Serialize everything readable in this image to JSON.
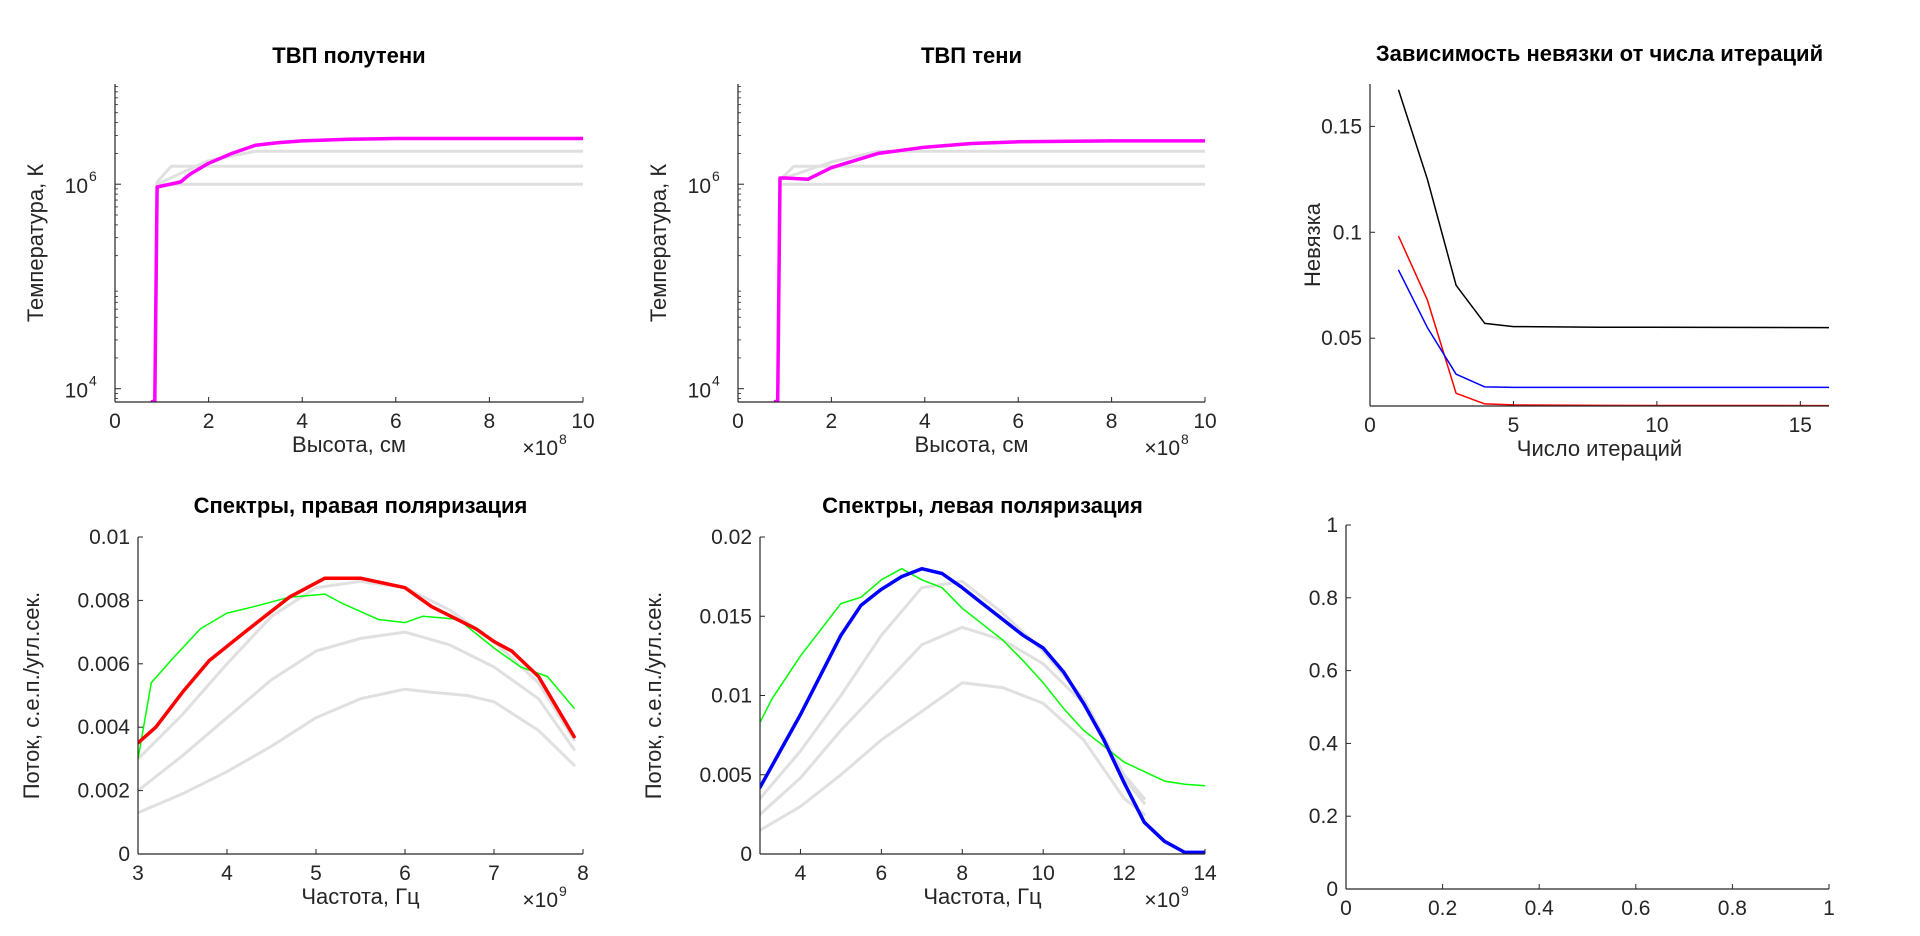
{
  "colors": {
    "magenta": "#ff00ff",
    "gray": "#e0e0e0",
    "green": "#00ff00",
    "red": "#ff0000",
    "blue": "#0000ff",
    "black": "#000000",
    "axis": "#262626"
  },
  "chart_data": [
    {
      "id": "p1",
      "type": "line",
      "title": "ТВП полутени",
      "xlabel": "Высота, см",
      "ylabel": "Температура, К",
      "x_exponent": "×10",
      "x_exponent_power": "8",
      "xlim": [
        0,
        10
      ],
      "ylim_log10": [
        3.87,
        6.98
      ],
      "y_scale": "log",
      "x_ticks": [
        0,
        2,
        4,
        6,
        8,
        10
      ],
      "x_tick_labels": [
        "0",
        "2",
        "4",
        "6",
        "8",
        "10"
      ],
      "y_ticks_log10": [
        4,
        6
      ],
      "y_tick_base": "10",
      "y_tick_powers": [
        "4",
        "6"
      ],
      "series": [
        {
          "color": "gray",
          "width": 3,
          "logy": true,
          "x": [
            0.8,
            0.85,
            0.9,
            1.0,
            10
          ],
          "y": [
            7500,
            7500,
            1000000,
            1000000,
            1000000
          ]
        },
        {
          "color": "gray",
          "width": 3,
          "logy": true,
          "x": [
            0.8,
            0.85,
            0.9,
            1.2,
            10
          ],
          "y": [
            7500,
            7500,
            1050000,
            1500000,
            1500000
          ]
        },
        {
          "color": "gray",
          "width": 3,
          "logy": true,
          "x": [
            0.8,
            0.85,
            0.9,
            1.0,
            2.0,
            3.0,
            10
          ],
          "y": [
            7500,
            7500,
            1000000,
            1050000,
            1700000,
            2100000,
            2100000
          ]
        },
        {
          "color": "magenta",
          "width": 3.5,
          "logy": true,
          "x": [
            0.8,
            0.85,
            0.9,
            0.95,
            1.0,
            1.4,
            1.6,
            2.0,
            2.5,
            3.0,
            3.5,
            4.0,
            5.0,
            6.0,
            8.0,
            10.0
          ],
          "y": [
            7500,
            7500,
            940000,
            950000,
            960000,
            1050000,
            1250000,
            1600000,
            2000000,
            2400000,
            2550000,
            2650000,
            2750000,
            2800000,
            2800000,
            2800000
          ]
        }
      ]
    },
    {
      "id": "p2",
      "type": "line",
      "title": "ТВП тени",
      "xlabel": "Высота, см",
      "ylabel": "Температура, К",
      "x_exponent": "×10",
      "x_exponent_power": "8",
      "xlim": [
        0,
        10
      ],
      "ylim_log10": [
        3.87,
        6.98
      ],
      "y_scale": "log",
      "x_ticks": [
        0,
        2,
        4,
        6,
        8,
        10
      ],
      "x_tick_labels": [
        "0",
        "2",
        "4",
        "6",
        "8",
        "10"
      ],
      "y_ticks_log10": [
        4,
        6
      ],
      "y_tick_base": "10",
      "y_tick_powers": [
        "4",
        "6"
      ],
      "series": [
        {
          "color": "gray",
          "width": 3,
          "logy": true,
          "x": [
            0.8,
            0.85,
            0.9,
            1.0,
            10
          ],
          "y": [
            7500,
            7500,
            1000000,
            1000000,
            1000000
          ]
        },
        {
          "color": "gray",
          "width": 3,
          "logy": true,
          "x": [
            0.8,
            0.85,
            0.9,
            1.2,
            10
          ],
          "y": [
            7500,
            7500,
            1100000,
            1500000,
            1500000
          ]
        },
        {
          "color": "gray",
          "width": 3,
          "logy": true,
          "x": [
            0.8,
            0.85,
            0.9,
            1.0,
            2.0,
            3.0,
            10
          ],
          "y": [
            7500,
            7500,
            1150000,
            1150000,
            1650000,
            2100000,
            2100000
          ]
        },
        {
          "color": "magenta",
          "width": 3.5,
          "logy": true,
          "x": [
            0.8,
            0.85,
            0.9,
            0.95,
            1.0,
            1.5,
            2.0,
            3.0,
            4.0,
            5.0,
            6.0,
            8.0,
            10.0
          ],
          "y": [
            7500,
            7500,
            1150000,
            1150000,
            1150000,
            1120000,
            1450000,
            2000000,
            2300000,
            2500000,
            2600000,
            2650000,
            2650000
          ]
        }
      ]
    },
    {
      "id": "p3",
      "type": "line",
      "title": "Зависимость невязки от числа итераций",
      "xlabel": "Число итераций",
      "ylabel": "Невязка",
      "xlim": [
        0,
        16
      ],
      "ylim": [
        0.018,
        0.17
      ],
      "x_ticks": [
        0,
        5,
        10,
        15
      ],
      "x_tick_labels": [
        "0",
        "5",
        "10",
        "15"
      ],
      "y_ticks": [
        0.05,
        0.1,
        0.15
      ],
      "y_tick_labels": [
        "0.05",
        "0.1",
        "0.15"
      ],
      "series": [
        {
          "color": "black",
          "width": 1.5,
          "x": [
            1,
            2,
            3,
            4,
            5,
            8,
            16
          ],
          "y": [
            0.167,
            0.125,
            0.075,
            0.057,
            0.0555,
            0.0552,
            0.055
          ]
        },
        {
          "color": "red",
          "width": 1.5,
          "x": [
            1,
            2,
            3,
            4,
            5,
            8,
            16
          ],
          "y": [
            0.098,
            0.068,
            0.024,
            0.019,
            0.0185,
            0.0183,
            0.0182
          ]
        },
        {
          "color": "blue",
          "width": 1.5,
          "x": [
            1,
            2,
            3,
            4,
            5,
            8,
            16
          ],
          "y": [
            0.082,
            0.055,
            0.033,
            0.027,
            0.0268,
            0.0268,
            0.0268
          ]
        }
      ]
    },
    {
      "id": "p4",
      "type": "line",
      "title": "Спектры, правая поляризация",
      "xlabel": "Частота, Гц",
      "ylabel": "Поток, с.е.п./угл.сек.",
      "x_exponent": "×10",
      "x_exponent_power": "9",
      "xlim": [
        3,
        8
      ],
      "ylim": [
        0,
        0.01
      ],
      "x_ticks": [
        3,
        4,
        5,
        6,
        7,
        8
      ],
      "x_tick_labels": [
        "3",
        "4",
        "5",
        "6",
        "7",
        "8"
      ],
      "y_ticks": [
        0,
        0.002,
        0.004,
        0.006,
        0.008,
        0.01
      ],
      "y_tick_labels": [
        "0",
        "0.002",
        "0.004",
        "0.006",
        "0.008",
        "0.01"
      ],
      "series": [
        {
          "color": "gray",
          "width": 3,
          "x": [
            3.0,
            3.5,
            4.0,
            4.5,
            5.0,
            5.5,
            6.0,
            6.3,
            6.7,
            7.0,
            7.5,
            7.9
          ],
          "y": [
            0.0013,
            0.0019,
            0.0026,
            0.0034,
            0.0043,
            0.0049,
            0.0052,
            0.0051,
            0.005,
            0.0048,
            0.0039,
            0.0028
          ]
        },
        {
          "color": "gray",
          "width": 3,
          "x": [
            3.0,
            3.5,
            4.0,
            4.5,
            5.0,
            5.5,
            6.0,
            6.5,
            7.0,
            7.5,
            7.9
          ],
          "y": [
            0.002,
            0.0031,
            0.0043,
            0.0055,
            0.0064,
            0.0068,
            0.007,
            0.0066,
            0.0059,
            0.0049,
            0.0033
          ]
        },
        {
          "color": "gray",
          "width": 3,
          "x": [
            3.0,
            3.5,
            4.0,
            4.5,
            5.0,
            5.5,
            6.0,
            6.5,
            7.0,
            7.5,
            7.9
          ],
          "y": [
            0.003,
            0.0044,
            0.006,
            0.0075,
            0.0084,
            0.0086,
            0.0084,
            0.0077,
            0.0067,
            0.0054,
            0.0036
          ]
        },
        {
          "color": "green",
          "width": 1.5,
          "x": [
            3.0,
            3.15,
            3.4,
            3.7,
            4.0,
            4.3,
            4.7,
            5.1,
            5.3,
            5.7,
            6.0,
            6.2,
            6.6,
            7.0,
            7.3,
            7.6,
            7.9
          ],
          "y": [
            0.003,
            0.0054,
            0.0062,
            0.0071,
            0.0076,
            0.0078,
            0.0081,
            0.0082,
            0.0079,
            0.0074,
            0.0073,
            0.0075,
            0.0074,
            0.0065,
            0.0059,
            0.0056,
            0.0046
          ]
        },
        {
          "color": "red",
          "width": 3.5,
          "x": [
            3.0,
            3.2,
            3.5,
            3.8,
            4.2,
            4.7,
            5.1,
            5.5,
            6.0,
            6.3,
            6.8,
            7.0,
            7.2,
            7.5,
            7.9
          ],
          "y": [
            0.0035,
            0.004,
            0.0051,
            0.0061,
            0.007,
            0.0081,
            0.0087,
            0.0087,
            0.0084,
            0.0078,
            0.0071,
            0.0067,
            0.0064,
            0.0056,
            0.0037
          ]
        }
      ]
    },
    {
      "id": "p5",
      "type": "line",
      "title": "Спектры, левая поляризация",
      "xlabel": "Частота, Гц",
      "ylabel": "Поток, с.е.п./угл.сек.",
      "x_exponent": "×10",
      "x_exponent_power": "9",
      "xlim": [
        3,
        14
      ],
      "ylim": [
        0,
        0.02
      ],
      "x_ticks": [
        4,
        6,
        8,
        10,
        12,
        14
      ],
      "x_tick_labels": [
        "4",
        "6",
        "8",
        "10",
        "12",
        "14"
      ],
      "y_ticks": [
        0,
        0.005,
        0.01,
        0.015,
        0.02
      ],
      "y_tick_labels": [
        "0",
        "0.005",
        "0.01",
        "0.015",
        "0.02"
      ],
      "series": [
        {
          "color": "gray",
          "width": 3,
          "x": [
            3,
            4,
            5,
            6,
            7,
            8,
            9,
            10,
            11,
            12,
            12.5
          ],
          "y": [
            0.0015,
            0.003,
            0.005,
            0.0072,
            0.009,
            0.0108,
            0.0105,
            0.0095,
            0.0072,
            0.0035,
            0.0025
          ]
        },
        {
          "color": "gray",
          "width": 3,
          "x": [
            3,
            4,
            5,
            6,
            7,
            8,
            9,
            10,
            11,
            12,
            12.5
          ],
          "y": [
            0.0025,
            0.0048,
            0.0078,
            0.0105,
            0.0132,
            0.0143,
            0.0135,
            0.012,
            0.0095,
            0.0048,
            0.0032
          ]
        },
        {
          "color": "gray",
          "width": 3,
          "x": [
            3,
            4,
            5,
            6,
            7,
            8,
            9,
            10,
            11,
            12,
            12.5
          ],
          "y": [
            0.0035,
            0.0065,
            0.01,
            0.0138,
            0.0168,
            0.0172,
            0.0152,
            0.0128,
            0.0098,
            0.005,
            0.0035
          ]
        },
        {
          "color": "green",
          "width": 1.5,
          "x": [
            3.0,
            3.3,
            4.0,
            5.0,
            5.5,
            6.0,
            6.5,
            7.0,
            7.5,
            8.0,
            8.5,
            9.0,
            9.5,
            10.0,
            10.5,
            11.0,
            11.5,
            12.0,
            12.5,
            13.0,
            13.5,
            14.0
          ],
          "y": [
            0.0083,
            0.0098,
            0.0125,
            0.0158,
            0.0162,
            0.0173,
            0.018,
            0.0173,
            0.0168,
            0.0155,
            0.0145,
            0.0135,
            0.0122,
            0.0108,
            0.0092,
            0.0078,
            0.0068,
            0.0058,
            0.0052,
            0.0046,
            0.0044,
            0.0043
          ]
        },
        {
          "color": "blue",
          "width": 3.5,
          "x": [
            3.0,
            3.5,
            4.0,
            4.5,
            5.0,
            5.5,
            6.0,
            6.5,
            7.0,
            7.5,
            8.0,
            8.5,
            9.0,
            9.5,
            10.0,
            10.5,
            11.0,
            11.5,
            12.0,
            12.5,
            13.0,
            13.5,
            14.0
          ],
          "y": [
            0.0042,
            0.0065,
            0.0088,
            0.0113,
            0.0138,
            0.0157,
            0.0167,
            0.0175,
            0.018,
            0.0177,
            0.0168,
            0.0158,
            0.0148,
            0.0138,
            0.013,
            0.0115,
            0.0095,
            0.0072,
            0.0045,
            0.002,
            0.0008,
            0.0001,
            0.0001
          ]
        }
      ]
    },
    {
      "id": "p6",
      "type": "line",
      "title": "",
      "xlabel": "",
      "ylabel": "",
      "xlim": [
        0,
        1
      ],
      "ylim": [
        0,
        1
      ],
      "x_ticks": [
        0,
        0.2,
        0.4,
        0.6,
        0.8,
        1
      ],
      "x_tick_labels": [
        "0",
        "0.2",
        "0.4",
        "0.6",
        "0.8",
        "1"
      ],
      "y_ticks": [
        0,
        0.2,
        0.4,
        0.6,
        0.8,
        1
      ],
      "y_tick_labels": [
        "0",
        "0.2",
        "0.4",
        "0.6",
        "0.8",
        "1"
      ],
      "series": []
    }
  ]
}
